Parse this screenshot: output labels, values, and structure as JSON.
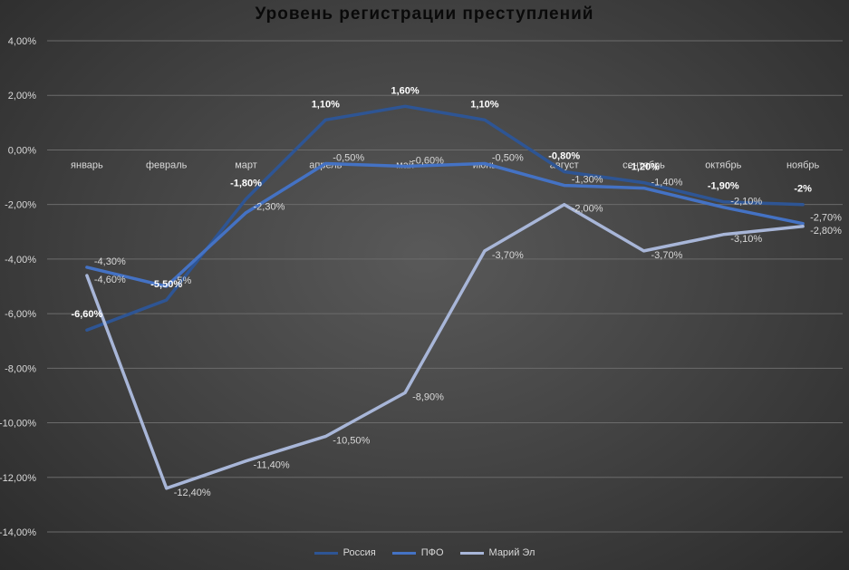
{
  "chart_data": {
    "type": "line",
    "title": "Уровень регистрации преступлений",
    "categories": [
      "январь",
      "февраль",
      "март",
      "апрель",
      "май",
      "июнь",
      "август",
      "сентябрь",
      "октябрь",
      "ноябрь"
    ],
    "ylim": [
      -14,
      4
    ],
    "yticks": [
      "4,00%",
      "2,00%",
      "0,00%",
      "-2,00%",
      "-4,00%",
      "-6,00%",
      "-8,00%",
      "-10,00%",
      "-12,00%",
      "-14,00%"
    ],
    "grid": true,
    "legend_position": "bottom",
    "series": [
      {
        "name": "Россия",
        "color": "#2e5594",
        "values": [
          -6.6,
          -5.5,
          -1.8,
          1.1,
          1.6,
          1.1,
          -0.8,
          -1.2,
          -1.9,
          -2.0
        ],
        "labels": [
          "-6,60%",
          "-5,50%",
          "-1,80%",
          "1,10%",
          "1,60%",
          "1,10%",
          "-0,80%",
          "-1,20%",
          "-1,90%",
          "-2%"
        ]
      },
      {
        "name": "ПФО",
        "color": "#4472c4",
        "values": [
          -4.3,
          -5.0,
          -2.3,
          -0.5,
          -0.6,
          -0.5,
          -1.3,
          -1.4,
          -2.1,
          -2.7
        ],
        "labels": [
          "-4,30%",
          "-5%",
          "-2,30%",
          "-0,50%",
          "-0,60%",
          "-0,50%",
          "-1,30%",
          "-1,40%",
          "-2,10%",
          "-2,70%"
        ]
      },
      {
        "name": "Марий Эл",
        "color": "#a8b6d8",
        "values": [
          -4.6,
          -12.4,
          -11.4,
          -10.5,
          -8.9,
          -3.7,
          -2.0,
          -3.7,
          -3.1,
          -2.8
        ],
        "labels": [
          "-4,60%",
          "-12,40%",
          "-11,40%",
          "-10,50%",
          "-8,90%",
          "-3,70%",
          "-2,00%",
          "-3,70%",
          "-3,10%",
          "-2,80%"
        ]
      }
    ]
  }
}
